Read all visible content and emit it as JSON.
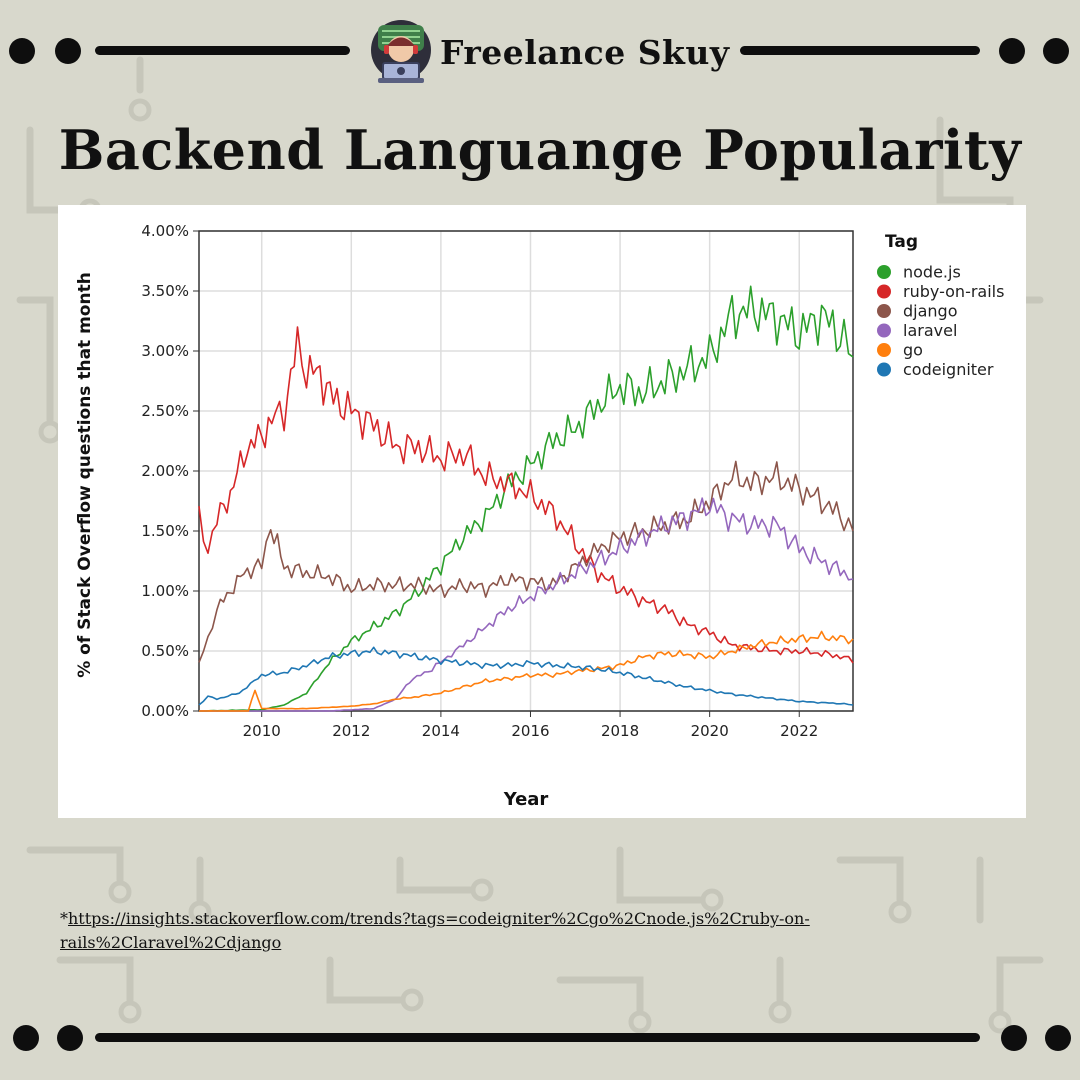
{
  "brand": {
    "name": "Freelance Skuy",
    "logo_icon": "developer-avatar-icon"
  },
  "headline": "Backend Languange Popularity",
  "source": {
    "prefix": "*",
    "url_text": "https://insights.stackoverflow.com/trends?tags=codeigniter%2Cgo%2Cnode.js%2Cruby-on-rails%2Claravel%2Cdjango"
  },
  "colors": {
    "background": "#d8d8cc",
    "ink": "#0e0e0e",
    "panel": "#ffffff"
  },
  "chart_data": {
    "type": "line",
    "title": "",
    "xlabel": "Year",
    "ylabel": "% of Stack Overflow questions that month",
    "xlim": [
      2008.6,
      2023.2
    ],
    "ylim": [
      0,
      4
    ],
    "y_ticks": [
      "0.00%",
      "0.50%",
      "1.00%",
      "1.50%",
      "2.00%",
      "2.50%",
      "3.00%",
      "3.50%",
      "4.00%"
    ],
    "x_ticks": [
      "2010",
      "2012",
      "2014",
      "2016",
      "2018",
      "2020",
      "2022"
    ],
    "grid": true,
    "legend_title": "Tag",
    "legend_position": "right",
    "series": [
      {
        "name": "node.js",
        "color": "#2ca02c",
        "points": [
          [
            2008.6,
            0
          ],
          [
            2010.0,
            0.01
          ],
          [
            2010.5,
            0.05
          ],
          [
            2011.0,
            0.15
          ],
          [
            2011.5,
            0.4
          ],
          [
            2012.0,
            0.58
          ],
          [
            2012.5,
            0.7
          ],
          [
            2013.0,
            0.82
          ],
          [
            2013.5,
            1.0
          ],
          [
            2014.0,
            1.22
          ],
          [
            2014.5,
            1.45
          ],
          [
            2015.0,
            1.62
          ],
          [
            2015.5,
            1.88
          ],
          [
            2016.0,
            2.05
          ],
          [
            2016.5,
            2.25
          ],
          [
            2017.0,
            2.35
          ],
          [
            2017.5,
            2.55
          ],
          [
            2018.0,
            2.7
          ],
          [
            2018.5,
            2.65
          ],
          [
            2019.0,
            2.75
          ],
          [
            2019.5,
            2.85
          ],
          [
            2020.0,
            2.95
          ],
          [
            2020.5,
            3.3
          ],
          [
            2021.0,
            3.35
          ],
          [
            2021.5,
            3.28
          ],
          [
            2022.0,
            3.15
          ],
          [
            2022.5,
            3.3
          ],
          [
            2023.0,
            3.1
          ],
          [
            2023.2,
            2.95
          ]
        ]
      },
      {
        "name": "ruby-on-rails",
        "color": "#d62728",
        "points": [
          [
            2008.6,
            1.6
          ],
          [
            2008.8,
            1.35
          ],
          [
            2009.0,
            1.6
          ],
          [
            2009.3,
            1.8
          ],
          [
            2009.6,
            2.15
          ],
          [
            2010.0,
            2.3
          ],
          [
            2010.3,
            2.45
          ],
          [
            2010.5,
            2.5
          ],
          [
            2010.8,
            3.05
          ],
          [
            2011.0,
            2.85
          ],
          [
            2011.3,
            2.8
          ],
          [
            2011.6,
            2.6
          ],
          [
            2012.0,
            2.5
          ],
          [
            2012.5,
            2.38
          ],
          [
            2013.0,
            2.2
          ],
          [
            2013.5,
            2.2
          ],
          [
            2014.0,
            2.1
          ],
          [
            2014.5,
            2.15
          ],
          [
            2015.0,
            1.95
          ],
          [
            2015.5,
            1.9
          ],
          [
            2016.0,
            1.8
          ],
          [
            2016.5,
            1.65
          ],
          [
            2017.0,
            1.4
          ],
          [
            2017.5,
            1.15
          ],
          [
            2018.0,
            1.02
          ],
          [
            2018.5,
            0.92
          ],
          [
            2019.0,
            0.85
          ],
          [
            2019.5,
            0.72
          ],
          [
            2020.0,
            0.65
          ],
          [
            2020.5,
            0.55
          ],
          [
            2021.0,
            0.52
          ],
          [
            2021.5,
            0.5
          ],
          [
            2022.0,
            0.5
          ],
          [
            2022.5,
            0.48
          ],
          [
            2023.0,
            0.45
          ],
          [
            2023.2,
            0.4
          ]
        ]
      },
      {
        "name": "django",
        "color": "#8c564b",
        "points": [
          [
            2008.6,
            0.4
          ],
          [
            2008.8,
            0.6
          ],
          [
            2009.0,
            0.85
          ],
          [
            2009.3,
            1.0
          ],
          [
            2009.6,
            1.15
          ],
          [
            2010.0,
            1.22
          ],
          [
            2010.2,
            1.55
          ],
          [
            2010.5,
            1.2
          ],
          [
            2011.0,
            1.15
          ],
          [
            2011.5,
            1.12
          ],
          [
            2012.0,
            1.02
          ],
          [
            2012.5,
            1.05
          ],
          [
            2013.0,
            1.05
          ],
          [
            2013.5,
            1.05
          ],
          [
            2014.0,
            1.0
          ],
          [
            2014.5,
            1.05
          ],
          [
            2015.0,
            1.02
          ],
          [
            2015.5,
            1.1
          ],
          [
            2016.0,
            1.08
          ],
          [
            2016.5,
            1.05
          ],
          [
            2017.0,
            1.2
          ],
          [
            2017.5,
            1.35
          ],
          [
            2018.0,
            1.45
          ],
          [
            2018.5,
            1.5
          ],
          [
            2019.0,
            1.55
          ],
          [
            2019.5,
            1.6
          ],
          [
            2020.0,
            1.75
          ],
          [
            2020.5,
            1.95
          ],
          [
            2021.0,
            1.9
          ],
          [
            2021.5,
            1.95
          ],
          [
            2022.0,
            1.85
          ],
          [
            2022.5,
            1.75
          ],
          [
            2023.0,
            1.6
          ],
          [
            2023.2,
            1.5
          ]
        ]
      },
      {
        "name": "laravel",
        "color": "#9467bd",
        "points": [
          [
            2008.6,
            0
          ],
          [
            2011.5,
            0
          ],
          [
            2012.5,
            0.02
          ],
          [
            2013.0,
            0.1
          ],
          [
            2013.3,
            0.25
          ],
          [
            2013.8,
            0.35
          ],
          [
            2014.5,
            0.55
          ],
          [
            2015.0,
            0.7
          ],
          [
            2015.5,
            0.85
          ],
          [
            2016.0,
            0.95
          ],
          [
            2016.5,
            1.05
          ],
          [
            2017.0,
            1.15
          ],
          [
            2017.5,
            1.25
          ],
          [
            2018.0,
            1.35
          ],
          [
            2018.5,
            1.45
          ],
          [
            2019.0,
            1.55
          ],
          [
            2019.5,
            1.62
          ],
          [
            2020.0,
            1.72
          ],
          [
            2020.5,
            1.6
          ],
          [
            2021.0,
            1.55
          ],
          [
            2021.5,
            1.55
          ],
          [
            2022.0,
            1.35
          ],
          [
            2022.5,
            1.25
          ],
          [
            2023.0,
            1.15
          ],
          [
            2023.2,
            1.1
          ]
        ]
      },
      {
        "name": "go",
        "color": "#ff7f0e",
        "points": [
          [
            2008.6,
            0
          ],
          [
            2009.7,
            0
          ],
          [
            2009.85,
            0.18
          ],
          [
            2010.0,
            0.02
          ],
          [
            2011.0,
            0.02
          ],
          [
            2012.0,
            0.04
          ],
          [
            2012.5,
            0.06
          ],
          [
            2013.0,
            0.1
          ],
          [
            2013.5,
            0.12
          ],
          [
            2014.0,
            0.15
          ],
          [
            2014.5,
            0.2
          ],
          [
            2015.0,
            0.25
          ],
          [
            2015.5,
            0.27
          ],
          [
            2016.0,
            0.3
          ],
          [
            2016.5,
            0.3
          ],
          [
            2017.0,
            0.33
          ],
          [
            2017.5,
            0.35
          ],
          [
            2018.0,
            0.38
          ],
          [
            2018.5,
            0.45
          ],
          [
            2019.0,
            0.48
          ],
          [
            2019.5,
            0.47
          ],
          [
            2020.0,
            0.45
          ],
          [
            2020.5,
            0.5
          ],
          [
            2021.0,
            0.55
          ],
          [
            2021.5,
            0.58
          ],
          [
            2022.0,
            0.6
          ],
          [
            2022.5,
            0.62
          ],
          [
            2023.0,
            0.6
          ],
          [
            2023.2,
            0.6
          ]
        ]
      },
      {
        "name": "codeigniter",
        "color": "#1f77b4",
        "points": [
          [
            2008.6,
            0.05
          ],
          [
            2008.8,
            0.12
          ],
          [
            2009.0,
            0.1
          ],
          [
            2009.5,
            0.15
          ],
          [
            2010.0,
            0.3
          ],
          [
            2010.5,
            0.32
          ],
          [
            2011.0,
            0.38
          ],
          [
            2011.5,
            0.45
          ],
          [
            2012.0,
            0.48
          ],
          [
            2012.5,
            0.5
          ],
          [
            2013.0,
            0.48
          ],
          [
            2013.5,
            0.45
          ],
          [
            2014.0,
            0.42
          ],
          [
            2014.5,
            0.4
          ],
          [
            2015.0,
            0.38
          ],
          [
            2015.5,
            0.38
          ],
          [
            2016.0,
            0.4
          ],
          [
            2016.5,
            0.38
          ],
          [
            2017.0,
            0.37
          ],
          [
            2017.5,
            0.35
          ],
          [
            2018.0,
            0.32
          ],
          [
            2018.5,
            0.28
          ],
          [
            2019.0,
            0.24
          ],
          [
            2019.5,
            0.2
          ],
          [
            2020.0,
            0.17
          ],
          [
            2020.5,
            0.14
          ],
          [
            2021.0,
            0.12
          ],
          [
            2021.5,
            0.1
          ],
          [
            2022.0,
            0.08
          ],
          [
            2022.5,
            0.07
          ],
          [
            2023.0,
            0.06
          ],
          [
            2023.2,
            0.05
          ]
        ]
      }
    ]
  }
}
